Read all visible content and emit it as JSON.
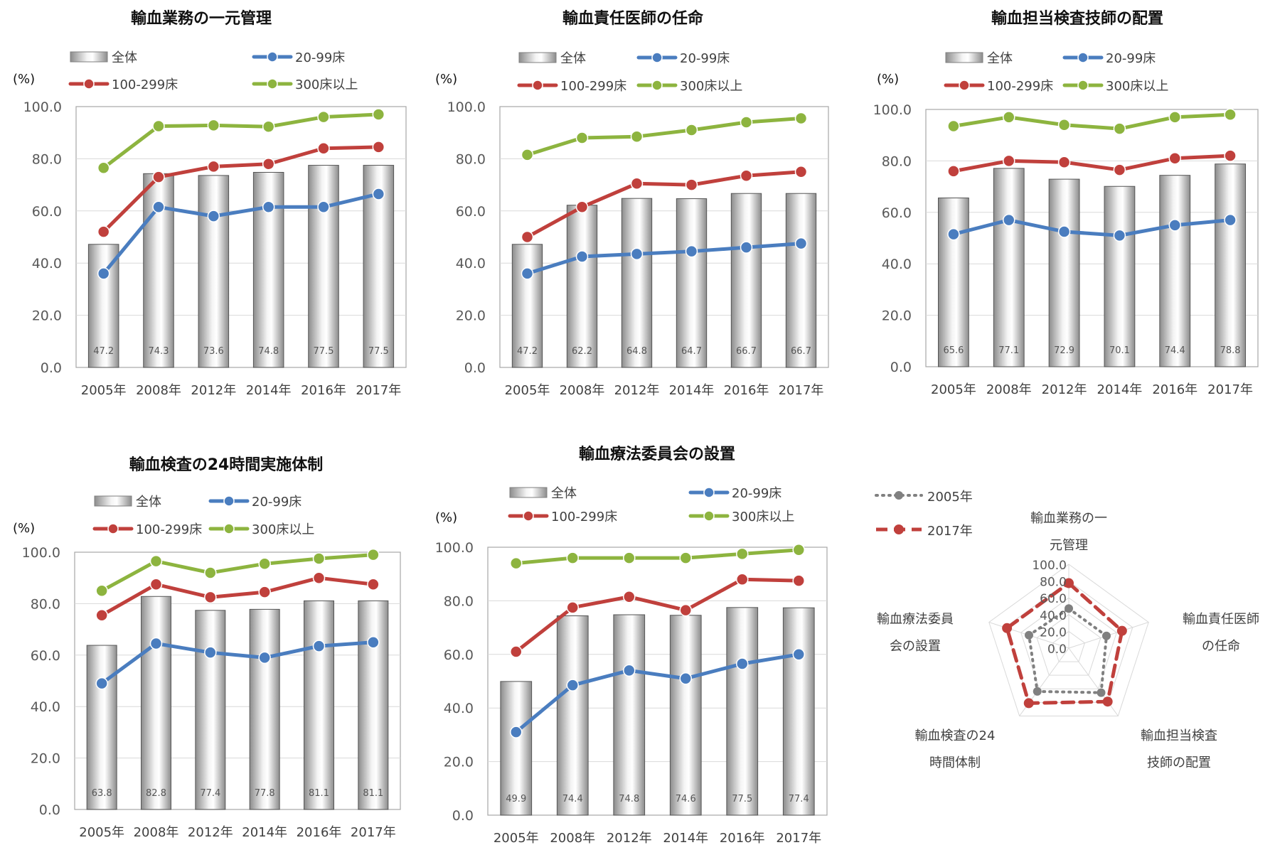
{
  "unit_label": "(%)",
  "legend": {
    "bar_all": "全体",
    "small": "20-99床",
    "medium": "100-299床",
    "large": "300床以上"
  },
  "colors": {
    "small": "#4a7dbf",
    "medium": "#c0403c",
    "large": "#8db43f",
    "bar": "#b4b4b4",
    "radar_2005": "#808080",
    "radar_2017": "#c0403c"
  },
  "chart_data": [
    {
      "type": "bar",
      "title": "輸血業務の一元管理",
      "categories": [
        "2005年",
        "2008年",
        "2012年",
        "2014年",
        "2016年",
        "2017年"
      ],
      "ylim": [
        0,
        100
      ],
      "yticks": [
        "0.0",
        "20.0",
        "40.0",
        "60.0",
        "80.0",
        "100.0"
      ],
      "bar_labels": [
        "47.2",
        "74.3",
        "73.6",
        "74.8",
        "77.5",
        "77.5"
      ],
      "series": [
        {
          "name": "全体",
          "kind": "bar",
          "values": [
            47.2,
            74.3,
            73.6,
            74.8,
            77.5,
            77.5
          ]
        },
        {
          "name": "20-99床",
          "kind": "line",
          "values": [
            36,
            61.5,
            58,
            61.5,
            61.5,
            66.5
          ]
        },
        {
          "name": "100-299床",
          "kind": "line",
          "values": [
            52,
            73,
            77,
            78,
            84,
            84.5
          ]
        },
        {
          "name": "300床以上",
          "kind": "line",
          "values": [
            76.5,
            92.5,
            92.8,
            92.3,
            96,
            97
          ]
        }
      ]
    },
    {
      "type": "bar",
      "title": "輸血責任医師の任命",
      "categories": [
        "2005年",
        "2008年",
        "2012年",
        "2014年",
        "2016年",
        "2017年"
      ],
      "ylim": [
        0,
        100
      ],
      "yticks": [
        "0.0",
        "20.0",
        "40.0",
        "60.0",
        "80.0",
        "100.0"
      ],
      "bar_labels": [
        "47.2",
        "62.2",
        "64.8",
        "64.7",
        "66.7",
        "66.7"
      ],
      "series": [
        {
          "name": "全体",
          "kind": "bar",
          "values": [
            47.2,
            62.2,
            64.8,
            64.7,
            66.7,
            66.7
          ]
        },
        {
          "name": "20-99床",
          "kind": "line",
          "values": [
            36,
            42.5,
            43.5,
            44.5,
            46,
            47.5
          ]
        },
        {
          "name": "100-299床",
          "kind": "line",
          "values": [
            50,
            61.5,
            70.5,
            70,
            73.5,
            75
          ]
        },
        {
          "name": "300床以上",
          "kind": "line",
          "values": [
            81.5,
            88,
            88.5,
            91,
            94,
            95.5
          ]
        }
      ]
    },
    {
      "type": "bar",
      "title": "輸血担当検査技師の配置",
      "categories": [
        "2005年",
        "2008年",
        "2012年",
        "2014年",
        "2016年",
        "2017年"
      ],
      "ylim": [
        0,
        100
      ],
      "yticks": [
        "0.0",
        "20.0",
        "40.0",
        "60.0",
        "80.0",
        "100.0"
      ],
      "bar_labels": [
        "65.6",
        "77.1",
        "72.9",
        "70.1",
        "74.4",
        "78.8"
      ],
      "series": [
        {
          "name": "全体",
          "kind": "bar",
          "values": [
            65.6,
            77.1,
            72.9,
            70.1,
            74.4,
            78.8
          ]
        },
        {
          "name": "20-99床",
          "kind": "line",
          "values": [
            51.5,
            57,
            52.5,
            51,
            55,
            57
          ]
        },
        {
          "name": "100-299床",
          "kind": "line",
          "values": [
            76,
            80,
            79.5,
            76.5,
            81,
            82
          ]
        },
        {
          "name": "300床以上",
          "kind": "line",
          "values": [
            93.5,
            97,
            94,
            92.5,
            97,
            98
          ]
        }
      ]
    },
    {
      "type": "bar",
      "title": "輸血検査の24時間実施体制",
      "categories": [
        "2005年",
        "2008年",
        "2012年",
        "2014年",
        "2016年",
        "2017年"
      ],
      "ylim": [
        0,
        100
      ],
      "yticks": [
        "0.0",
        "20.0",
        "40.0",
        "60.0",
        "80.0",
        "100.0"
      ],
      "bar_labels": [
        "63.8",
        "82.8",
        "77.4",
        "77.8",
        "81.1",
        "81.1"
      ],
      "series": [
        {
          "name": "全体",
          "kind": "bar",
          "values": [
            63.8,
            82.8,
            77.4,
            77.8,
            81.1,
            81.1
          ]
        },
        {
          "name": "20-99床",
          "kind": "line",
          "values": [
            49,
            64.5,
            61,
            59,
            63.5,
            65
          ]
        },
        {
          "name": "100-299床",
          "kind": "line",
          "values": [
            75.5,
            87.5,
            82.5,
            84.5,
            90,
            87.5
          ]
        },
        {
          "name": "300床以上",
          "kind": "line",
          "values": [
            85,
            96.5,
            92,
            95.5,
            97.5,
            99
          ]
        }
      ]
    },
    {
      "type": "bar",
      "title": "輸血療法委員会の設置",
      "categories": [
        "2005年",
        "2008年",
        "2012年",
        "2014年",
        "2016年",
        "2017年"
      ],
      "ylim": [
        0,
        100
      ],
      "yticks": [
        "0.0",
        "20.0",
        "40.0",
        "60.0",
        "80.0",
        "100.0"
      ],
      "bar_labels": [
        "49.9",
        "74.4",
        "74.8",
        "74.6",
        "77.5",
        "77.4"
      ],
      "series": [
        {
          "name": "全体",
          "kind": "bar",
          "values": [
            49.9,
            74.4,
            74.8,
            74.6,
            77.5,
            77.4
          ]
        },
        {
          "name": "20-99床",
          "kind": "line",
          "values": [
            31,
            48.5,
            54,
            51,
            56.5,
            60
          ]
        },
        {
          "name": "100-299床",
          "kind": "line",
          "values": [
            61,
            77.5,
            81.5,
            76.5,
            88,
            87.5
          ]
        },
        {
          "name": "300床以上",
          "kind": "line",
          "values": [
            94,
            96,
            96,
            96,
            97.5,
            99
          ]
        }
      ]
    },
    {
      "type": "radar",
      "axes": [
        "輸血業務の一元管理",
        "輸血責任医師の任命",
        "輸血担当検査技師の配置",
        "輸血検査の24時間体制",
        "輸血療法委員会の設置"
      ],
      "axis_labels": [
        [
          "輸血業務の一",
          "元管理"
        ],
        [
          "輸血責任医師",
          "の任命"
        ],
        [
          "輸血担当検査",
          "技師の配置"
        ],
        [
          "輸血検査の24",
          "時間体制"
        ],
        [
          "輸血療法委員",
          "会の設置"
        ]
      ],
      "rlim": [
        0,
        100
      ],
      "rticks": [
        "0.0",
        "20.0",
        "40.0",
        "60.0",
        "80.0",
        "100.0"
      ],
      "series": [
        {
          "name": "2005年",
          "values": [
            47.2,
            47.2,
            65.6,
            63.8,
            49.9
          ]
        },
        {
          "name": "2017年",
          "values": [
            77.5,
            66.7,
            78.8,
            81.1,
            77.4
          ]
        }
      ]
    }
  ]
}
